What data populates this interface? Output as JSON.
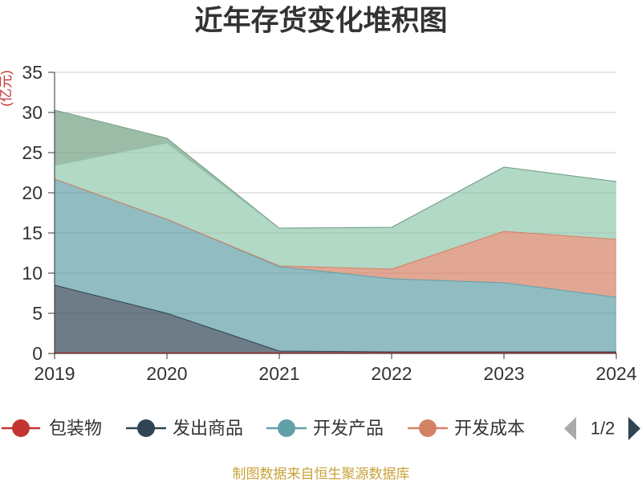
{
  "chart_data": {
    "type": "area",
    "stacked": true,
    "title": "近年存货变化堆积图",
    "ylabel": "(亿元)",
    "categories": [
      "2019",
      "2020",
      "2021",
      "2022",
      "2023",
      "2024"
    ],
    "ylim": [
      0,
      35
    ],
    "yticks": [
      0,
      5,
      10,
      15,
      20,
      25,
      30,
      35
    ],
    "grid": true,
    "legend_position": "bottom",
    "series": [
      {
        "name": "包装物",
        "color": "#c23531",
        "values": [
          0.1,
          0.1,
          0.1,
          0.1,
          0.1,
          0.1
        ]
      },
      {
        "name": "发出商品",
        "color": "#2f4554",
        "values": [
          8.4,
          4.9,
          0.2,
          0.1,
          0.1,
          0.1
        ]
      },
      {
        "name": "开发产品",
        "color": "#61a0a8",
        "values": [
          13.2,
          11.7,
          10.5,
          9.1,
          8.6,
          6.8
        ]
      },
      {
        "name": "开发成本",
        "color": "#d48265",
        "values": [
          0,
          0,
          0.1,
          1.2,
          6.4,
          7.2
        ]
      },
      {
        "color": "#91c7ae",
        "values": [
          1.7,
          9.5,
          4.7,
          5.2,
          8.0,
          7.2
        ]
      },
      {
        "color": "#749f83",
        "values": [
          6.9,
          0.6,
          0,
          0,
          0,
          0
        ]
      }
    ]
  },
  "legend": {
    "page": "1/2",
    "prev_icon": "triangle-left-icon",
    "next_icon": "triangle-right-icon"
  },
  "footer": {
    "source": "制图数据来自恒生聚源数据库"
  },
  "colors": {
    "title": "#333333",
    "axis": "#333333",
    "tick_label": "#333333",
    "grid": "#cccccc",
    "axis_name": "#c23531",
    "legend_text": "#333333",
    "pager_active": "#2f4554",
    "pager_inactive": "#aaaaaa",
    "footer": "#c9a23a"
  }
}
